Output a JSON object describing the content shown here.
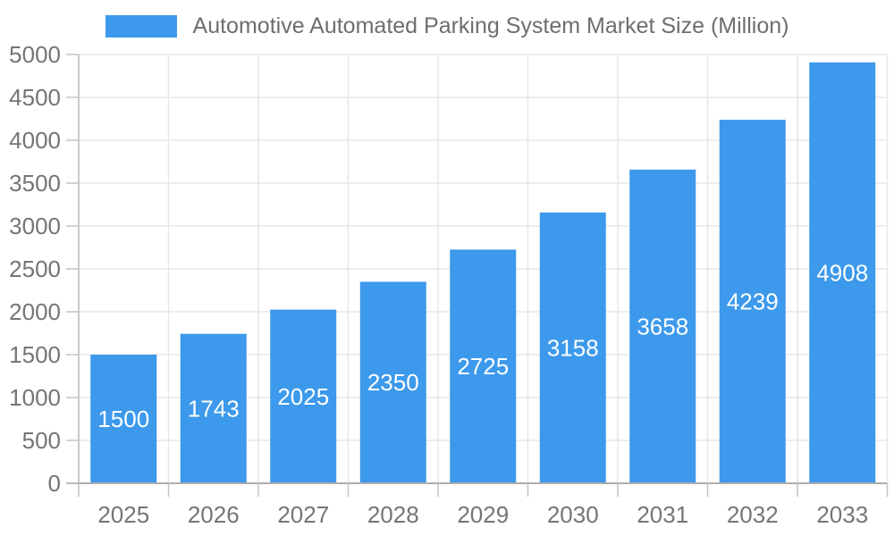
{
  "legend": {
    "label": "Automotive Automated Parking System Market Size (Million)"
  },
  "chart_data": {
    "type": "bar",
    "title": "Automotive Automated Parking System Market Size (Million)",
    "series_name": "Automotive Automated Parking System Market Size (Million)",
    "categories": [
      "2025",
      "2026",
      "2027",
      "2028",
      "2029",
      "2030",
      "2031",
      "2032",
      "2033"
    ],
    "values": [
      1500,
      1743,
      2025,
      2350,
      2725,
      3158,
      3658,
      4239,
      4908
    ],
    "value_labels": [
      "1500",
      "1743",
      "2025",
      "2350",
      "2725",
      "3158",
      "3658",
      "4239",
      "4908"
    ],
    "xlabel": "",
    "ylabel": "",
    "ylim": [
      0,
      5000
    ],
    "ytick_step": 500,
    "ytick_labels": [
      "0",
      "500",
      "1000",
      "1500",
      "2000",
      "2500",
      "3000",
      "3500",
      "4000",
      "4500",
      "5000"
    ],
    "grid": true,
    "legend_position": "top"
  },
  "colors": {
    "bar": "#3C99EB",
    "grid": "#e7e7e7",
    "x_axis_line": "#adadad",
    "y_axis_line": "#c4c4c4",
    "tick_mark": "#c4c4c4",
    "tick_label": "#757575",
    "title_text": "#6e6e6e",
    "value_label": "#ffffff",
    "background": "#ffffff"
  }
}
